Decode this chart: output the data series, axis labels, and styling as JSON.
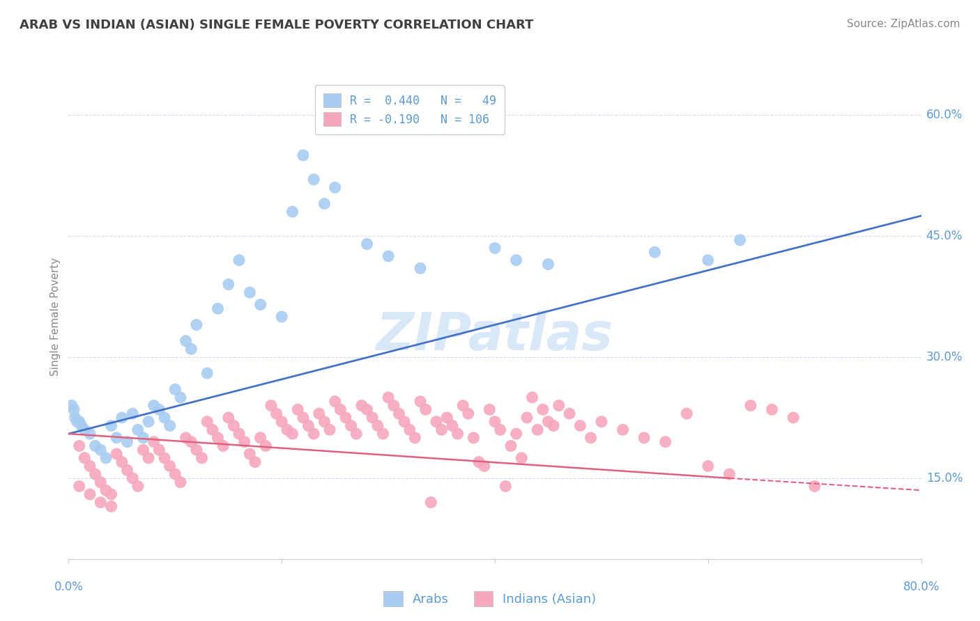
{
  "title": "ARAB VS INDIAN (ASIAN) SINGLE FEMALE POVERTY CORRELATION CHART",
  "source": "Source: ZipAtlas.com",
  "ylabel": "Single Female Poverty",
  "xlim": [
    0.0,
    80.0
  ],
  "ylim": [
    5.0,
    65.0
  ],
  "yticks": [
    15.0,
    30.0,
    45.0,
    60.0
  ],
  "arab_color": "#A8CCF0",
  "indian_color": "#F5A8BC",
  "arab_line_color": "#4472C4",
  "indian_line_color": "#E06080",
  "axis_label_color": "#5B9BD5",
  "ylabel_color": "#888888",
  "title_color": "#404040",
  "source_color": "#888888",
  "watermark_color": "#D8E8F8",
  "background_color": "#FFFFFF",
  "grid_color": "#D0DCF0",
  "arab_points": [
    [
      1.0,
      22.0
    ],
    [
      1.5,
      21.0
    ],
    [
      2.0,
      20.5
    ],
    [
      2.5,
      19.0
    ],
    [
      3.0,
      18.5
    ],
    [
      3.5,
      17.5
    ],
    [
      4.0,
      21.5
    ],
    [
      4.5,
      20.0
    ],
    [
      5.0,
      22.5
    ],
    [
      5.5,
      19.5
    ],
    [
      6.0,
      23.0
    ],
    [
      6.5,
      21.0
    ],
    [
      7.0,
      20.0
    ],
    [
      7.5,
      22.0
    ],
    [
      8.0,
      24.0
    ],
    [
      8.5,
      23.5
    ],
    [
      9.0,
      22.5
    ],
    [
      9.5,
      21.5
    ],
    [
      10.0,
      26.0
    ],
    [
      10.5,
      25.0
    ],
    [
      11.0,
      32.0
    ],
    [
      11.5,
      31.0
    ],
    [
      12.0,
      34.0
    ],
    [
      13.0,
      28.0
    ],
    [
      14.0,
      36.0
    ],
    [
      15.0,
      39.0
    ],
    [
      16.0,
      42.0
    ],
    [
      17.0,
      38.0
    ],
    [
      18.0,
      36.5
    ],
    [
      20.0,
      35.0
    ],
    [
      21.0,
      48.0
    ],
    [
      22.0,
      55.0
    ],
    [
      23.0,
      52.0
    ],
    [
      24.0,
      49.0
    ],
    [
      25.0,
      51.0
    ],
    [
      28.0,
      44.0
    ],
    [
      30.0,
      42.5
    ],
    [
      33.0,
      41.0
    ],
    [
      40.0,
      43.5
    ],
    [
      42.0,
      42.0
    ],
    [
      45.0,
      41.5
    ],
    [
      55.0,
      43.0
    ],
    [
      60.0,
      42.0
    ],
    [
      63.0,
      44.5
    ],
    [
      0.5,
      23.5
    ],
    [
      0.8,
      22.0
    ],
    [
      1.2,
      21.5
    ],
    [
      0.3,
      24.0
    ],
    [
      0.6,
      22.5
    ]
  ],
  "indian_points": [
    [
      1.0,
      19.0
    ],
    [
      1.5,
      17.5
    ],
    [
      2.0,
      16.5
    ],
    [
      2.5,
      15.5
    ],
    [
      3.0,
      14.5
    ],
    [
      3.5,
      13.5
    ],
    [
      4.0,
      13.0
    ],
    [
      4.5,
      18.0
    ],
    [
      5.0,
      17.0
    ],
    [
      5.5,
      16.0
    ],
    [
      6.0,
      15.0
    ],
    [
      6.5,
      14.0
    ],
    [
      7.0,
      18.5
    ],
    [
      7.5,
      17.5
    ],
    [
      8.0,
      19.5
    ],
    [
      8.5,
      18.5
    ],
    [
      9.0,
      17.5
    ],
    [
      9.5,
      16.5
    ],
    [
      10.0,
      15.5
    ],
    [
      10.5,
      14.5
    ],
    [
      11.0,
      20.0
    ],
    [
      11.5,
      19.5
    ],
    [
      12.0,
      18.5
    ],
    [
      12.5,
      17.5
    ],
    [
      13.0,
      22.0
    ],
    [
      13.5,
      21.0
    ],
    [
      14.0,
      20.0
    ],
    [
      14.5,
      19.0
    ],
    [
      15.0,
      22.5
    ],
    [
      15.5,
      21.5
    ],
    [
      16.0,
      20.5
    ],
    [
      16.5,
      19.5
    ],
    [
      17.0,
      18.0
    ],
    [
      17.5,
      17.0
    ],
    [
      18.0,
      20.0
    ],
    [
      18.5,
      19.0
    ],
    [
      19.0,
      24.0
    ],
    [
      19.5,
      23.0
    ],
    [
      20.0,
      22.0
    ],
    [
      20.5,
      21.0
    ],
    [
      21.0,
      20.5
    ],
    [
      21.5,
      23.5
    ],
    [
      22.0,
      22.5
    ],
    [
      22.5,
      21.5
    ],
    [
      23.0,
      20.5
    ],
    [
      23.5,
      23.0
    ],
    [
      24.0,
      22.0
    ],
    [
      24.5,
      21.0
    ],
    [
      25.0,
      24.5
    ],
    [
      25.5,
      23.5
    ],
    [
      26.0,
      22.5
    ],
    [
      26.5,
      21.5
    ],
    [
      27.0,
      20.5
    ],
    [
      27.5,
      24.0
    ],
    [
      28.0,
      23.5
    ],
    [
      28.5,
      22.5
    ],
    [
      29.0,
      21.5
    ],
    [
      29.5,
      20.5
    ],
    [
      30.0,
      25.0
    ],
    [
      30.5,
      24.0
    ],
    [
      31.0,
      23.0
    ],
    [
      31.5,
      22.0
    ],
    [
      32.0,
      21.0
    ],
    [
      32.5,
      20.0
    ],
    [
      33.0,
      24.5
    ],
    [
      33.5,
      23.5
    ],
    [
      34.0,
      12.0
    ],
    [
      34.5,
      22.0
    ],
    [
      35.0,
      21.0
    ],
    [
      35.5,
      22.5
    ],
    [
      36.0,
      21.5
    ],
    [
      36.5,
      20.5
    ],
    [
      37.0,
      24.0
    ],
    [
      37.5,
      23.0
    ],
    [
      38.0,
      20.0
    ],
    [
      38.5,
      17.0
    ],
    [
      39.0,
      16.5
    ],
    [
      39.5,
      23.5
    ],
    [
      40.0,
      22.0
    ],
    [
      40.5,
      21.0
    ],
    [
      41.0,
      14.0
    ],
    [
      41.5,
      19.0
    ],
    [
      42.0,
      20.5
    ],
    [
      42.5,
      17.5
    ],
    [
      43.0,
      22.5
    ],
    [
      43.5,
      25.0
    ],
    [
      44.0,
      21.0
    ],
    [
      44.5,
      23.5
    ],
    [
      45.0,
      22.0
    ],
    [
      45.5,
      21.5
    ],
    [
      46.0,
      24.0
    ],
    [
      47.0,
      23.0
    ],
    [
      48.0,
      21.5
    ],
    [
      49.0,
      20.0
    ],
    [
      50.0,
      22.0
    ],
    [
      52.0,
      21.0
    ],
    [
      54.0,
      20.0
    ],
    [
      56.0,
      19.5
    ],
    [
      58.0,
      23.0
    ],
    [
      60.0,
      16.5
    ],
    [
      62.0,
      15.5
    ],
    [
      64.0,
      24.0
    ],
    [
      66.0,
      23.5
    ],
    [
      68.0,
      22.5
    ],
    [
      70.0,
      14.0
    ],
    [
      1.0,
      14.0
    ],
    [
      2.0,
      13.0
    ],
    [
      3.0,
      12.0
    ],
    [
      4.0,
      11.5
    ]
  ],
  "arab_trend": [
    0.0,
    80.0,
    20.5,
    47.5
  ],
  "indian_trend_solid": [
    0.0,
    62.0,
    20.5,
    15.0
  ],
  "indian_trend_dash": [
    62.0,
    80.0,
    15.0,
    13.5
  ]
}
